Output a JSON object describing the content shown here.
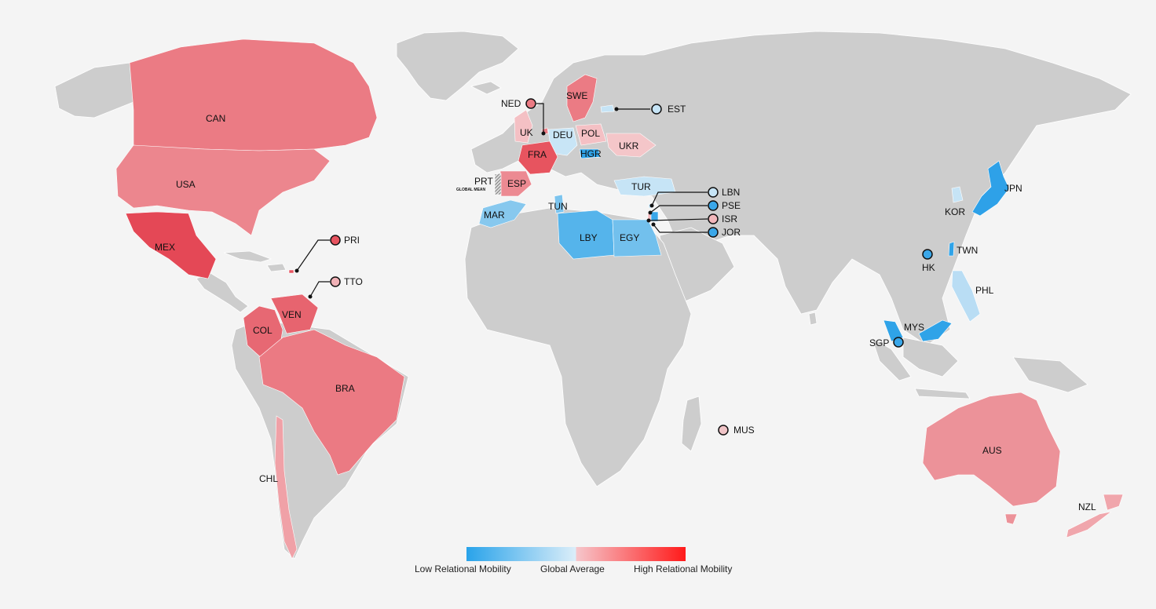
{
  "colors": {
    "background": "#f4f4f4",
    "no_data": "#cdcdcd",
    "low": "#29a3ea",
    "mid": "#dceef9",
    "mid_high": "#f6c6cb",
    "high": "#ff1a1a"
  },
  "legend": {
    "low_label": "Low Relational Mobility",
    "mid_label": "Global Average",
    "high_label": "High Relational Mobility"
  },
  "countries": {
    "CAN": "CAN",
    "USA": "USA",
    "MEX": "MEX",
    "PRI": "PRI",
    "TTO": "TTO",
    "COL": "COL",
    "VEN": "VEN",
    "BRA": "BRA",
    "CHL": "CHL",
    "NED": "NED",
    "UK": "UK",
    "DEU": "DEU",
    "FRA": "FRA",
    "SWE": "SWE",
    "EST": "EST",
    "POL": "POL",
    "UKR": "UKR",
    "HGR": "HGR",
    "PRT": "PRT",
    "global_mean": "GLOBAL MEAN",
    "ESP": "ESP",
    "MAR": "MAR",
    "TUN": "TUN",
    "LBY": "LBY",
    "EGY": "EGY",
    "TUR": "TUR",
    "LBN": "LBN",
    "PSE": "PSE",
    "ISR": "ISR",
    "JOR": "JOR",
    "MUS": "MUS",
    "JPN": "JPN",
    "KOR": "KOR",
    "TWN": "TWN",
    "HK": "HK",
    "PHL": "PHL",
    "MYS": "MYS",
    "SGP": "SGP",
    "AUS": "AUS",
    "NZL": "NZL"
  }
}
